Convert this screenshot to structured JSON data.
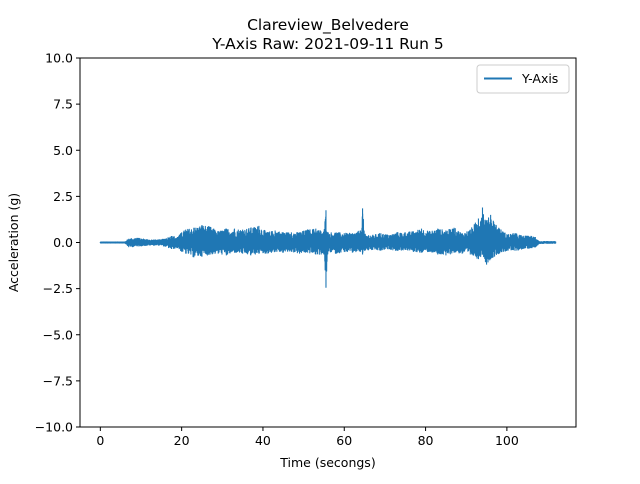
{
  "chart_data": {
    "type": "line",
    "title_line1": "Clareview_Belvedere",
    "title_line2": "Y-Axis Raw: 2021-09-11 Run 5",
    "xlabel": "Time (secongs)",
    "ylabel": "Acceleration (g)",
    "xlim": [
      -5,
      117
    ],
    "ylim": [
      -10,
      10
    ],
    "x_ticks": [
      0,
      20,
      40,
      60,
      80,
      100
    ],
    "x_tick_labels": [
      "0",
      "20",
      "40",
      "60",
      "80",
      "100"
    ],
    "y_ticks": [
      -10,
      -7.5,
      -5,
      -2.5,
      0,
      2.5,
      5,
      7.5,
      10
    ],
    "y_tick_labels": [
      "−10.0",
      "−7.5",
      "−5.0",
      "−2.5",
      "0.0",
      "2.5",
      "5.0",
      "7.5",
      "10.0"
    ],
    "legend_position": "top-right",
    "grid": false,
    "series": [
      {
        "name": "Y-Axis",
        "color": "#1f77b4",
        "x_range": [
          0,
          112
        ],
        "envelope": {
          "x": [
            0,
            6,
            7,
            9,
            12,
            15,
            17.5,
            19,
            20,
            21,
            23,
            25,
            27,
            29,
            31,
            33,
            35,
            37,
            39,
            41,
            43,
            45,
            47,
            49,
            51,
            53,
            55,
            55.5,
            56,
            58,
            60,
            62,
            64,
            64.5,
            65,
            67,
            69,
            71,
            73,
            75,
            77,
            79,
            81,
            83,
            85,
            87,
            89,
            91,
            93,
            94,
            95,
            96,
            98,
            100,
            102,
            104,
            106,
            107,
            108,
            110,
            112
          ],
          "upper": [
            0.03,
            0.03,
            0.2,
            0.25,
            0.15,
            0.15,
            0.35,
            0.3,
            0.55,
            0.7,
            0.8,
            0.95,
            0.85,
            0.6,
            0.75,
            0.75,
            0.7,
            0.8,
            0.9,
            0.55,
            0.65,
            0.55,
            0.55,
            0.55,
            0.7,
            0.75,
            0.6,
            1.75,
            0.55,
            0.55,
            0.5,
            0.5,
            0.65,
            1.85,
            0.45,
            0.4,
            0.5,
            0.4,
            0.55,
            0.55,
            0.6,
            0.75,
            0.6,
            0.75,
            0.65,
            0.8,
            0.5,
            0.7,
            1.3,
            1.9,
            1.2,
            1.5,
            0.8,
            0.45,
            0.5,
            0.35,
            0.35,
            0.3,
            0.05,
            0.05,
            0.05
          ],
          "lower": [
            -0.03,
            -0.03,
            -0.25,
            -0.2,
            -0.15,
            -0.15,
            -0.35,
            -0.3,
            -0.5,
            -0.6,
            -0.8,
            -0.75,
            -0.65,
            -0.6,
            -0.7,
            -0.55,
            -0.6,
            -0.7,
            -0.6,
            -0.6,
            -0.5,
            -0.55,
            -0.5,
            -0.6,
            -0.55,
            -0.65,
            -0.65,
            -2.45,
            -0.5,
            -0.6,
            -0.5,
            -0.55,
            -0.5,
            -0.65,
            -0.45,
            -0.4,
            -0.45,
            -0.35,
            -0.45,
            -0.4,
            -0.5,
            -0.55,
            -0.5,
            -0.65,
            -0.7,
            -0.55,
            -0.6,
            -0.65,
            -0.9,
            -0.65,
            -1.2,
            -0.9,
            -0.6,
            -0.45,
            -0.45,
            -0.35,
            -0.3,
            -0.25,
            -0.05,
            -0.05,
            -0.05
          ]
        }
      }
    ]
  }
}
